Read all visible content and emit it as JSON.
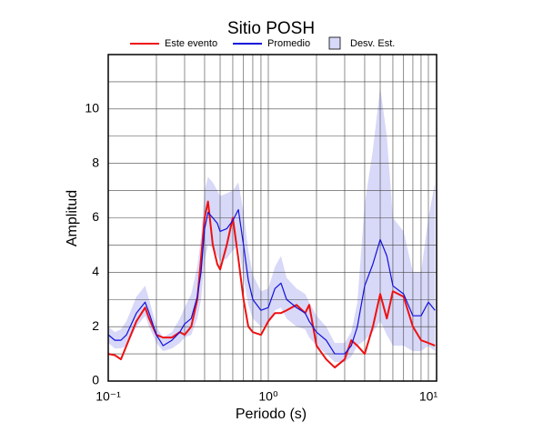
{
  "chart_data": {
    "type": "line",
    "title": "Sitio POSH",
    "xlabel": "Periodo (s)",
    "ylabel": "Amplitud",
    "xscale": "log",
    "grid": true,
    "xlim": [
      0.1,
      11.25
    ],
    "ylim": [
      0,
      12
    ],
    "xticks": [
      {
        "value": 0.1,
        "label": "10⁻¹"
      },
      {
        "value": 1,
        "label": "10⁰"
      },
      {
        "value": 10,
        "label": "10¹"
      }
    ],
    "xminor": [
      0.2,
      0.3,
      0.4,
      0.5,
      0.6,
      0.7,
      0.8,
      0.9,
      2,
      3,
      4,
      5,
      6,
      7,
      8,
      9
    ],
    "yticks": [
      0,
      2,
      4,
      6,
      8,
      10
    ],
    "yminor": [
      1,
      3,
      5,
      7,
      9,
      11
    ],
    "x": [
      0.1,
      0.11,
      0.12,
      0.13,
      0.15,
      0.17,
      0.18,
      0.2,
      0.22,
      0.25,
      0.28,
      0.3,
      0.33,
      0.36,
      0.38,
      0.4,
      0.42,
      0.45,
      0.48,
      0.5,
      0.55,
      0.6,
      0.65,
      0.7,
      0.75,
      0.8,
      0.9,
      1.0,
      1.1,
      1.2,
      1.3,
      1.5,
      1.7,
      1.8,
      2.0,
      2.3,
      2.6,
      3.0,
      3.3,
      3.6,
      4.0,
      4.5,
      5.0,
      5.5,
      6.0,
      7.0,
      8.0,
      9.0,
      10,
      11
    ],
    "series": [
      {
        "name": "Este evento",
        "color": "#ee1111",
        "width": 2,
        "values": [
          1.0,
          0.95,
          0.8,
          1.3,
          2.2,
          2.7,
          2.3,
          1.7,
          1.6,
          1.6,
          1.8,
          1.7,
          2.0,
          3.0,
          4.5,
          6.0,
          6.6,
          5.0,
          4.3,
          4.1,
          5.0,
          6.0,
          4.5,
          3.0,
          2.0,
          1.8,
          1.7,
          2.2,
          2.5,
          2.5,
          2.6,
          2.8,
          2.5,
          2.8,
          1.3,
          0.8,
          0.5,
          0.8,
          1.5,
          1.3,
          1.0,
          2.0,
          3.2,
          2.3,
          3.3,
          3.1,
          2.0,
          1.5,
          1.4,
          1.3
        ]
      },
      {
        "name": "Promedio",
        "color": "#1111dd",
        "width": 1.2,
        "values": [
          1.7,
          1.5,
          1.5,
          1.7,
          2.5,
          2.9,
          2.5,
          1.7,
          1.3,
          1.5,
          1.8,
          2.1,
          2.3,
          3.1,
          4.0,
          5.6,
          6.2,
          6.0,
          5.8,
          5.5,
          5.6,
          5.9,
          6.3,
          5.0,
          3.7,
          3.0,
          2.6,
          2.7,
          3.4,
          3.6,
          3.0,
          2.7,
          2.5,
          2.2,
          1.8,
          1.5,
          1.0,
          1.0,
          1.3,
          2.0,
          3.5,
          4.3,
          5.2,
          4.6,
          3.5,
          3.2,
          2.4,
          2.4,
          2.9,
          2.6
        ]
      }
    ],
    "band": {
      "name": "Desv. Est.",
      "color": "#d8d8f8",
      "lower": [
        1.4,
        1.2,
        1.2,
        1.3,
        2.0,
        2.4,
        2.0,
        1.4,
        1.1,
        1.2,
        1.4,
        1.6,
        1.7,
        2.3,
        3.0,
        4.4,
        5.0,
        4.9,
        4.6,
        4.4,
        4.5,
        4.8,
        5.0,
        3.8,
        2.8,
        2.3,
        2.0,
        2.1,
        2.6,
        2.7,
        2.3,
        2.0,
        1.9,
        1.6,
        1.3,
        1.0,
        0.7,
        0.7,
        0.9,
        1.3,
        1.5,
        1.8,
        2.2,
        1.7,
        1.3,
        1.3,
        1.1,
        1.1,
        1.3,
        1.1
      ],
      "upper": [
        2.0,
        1.8,
        1.9,
        2.2,
        3.1,
        3.5,
        3.0,
        2.0,
        1.6,
        1.8,
        2.3,
        2.7,
        3.2,
        4.2,
        5.3,
        7.0,
        7.5,
        7.3,
        7.0,
        6.8,
        6.9,
        7.0,
        7.3,
        6.2,
        4.8,
        3.9,
        3.3,
        3.4,
        4.2,
        4.6,
        3.8,
        3.4,
        3.2,
        2.9,
        2.4,
        2.0,
        1.4,
        1.4,
        1.8,
        2.9,
        6.5,
        8.5,
        10.8,
        9.0,
        6.0,
        5.5,
        4.0,
        4.0,
        6.0,
        7.3
      ]
    }
  }
}
